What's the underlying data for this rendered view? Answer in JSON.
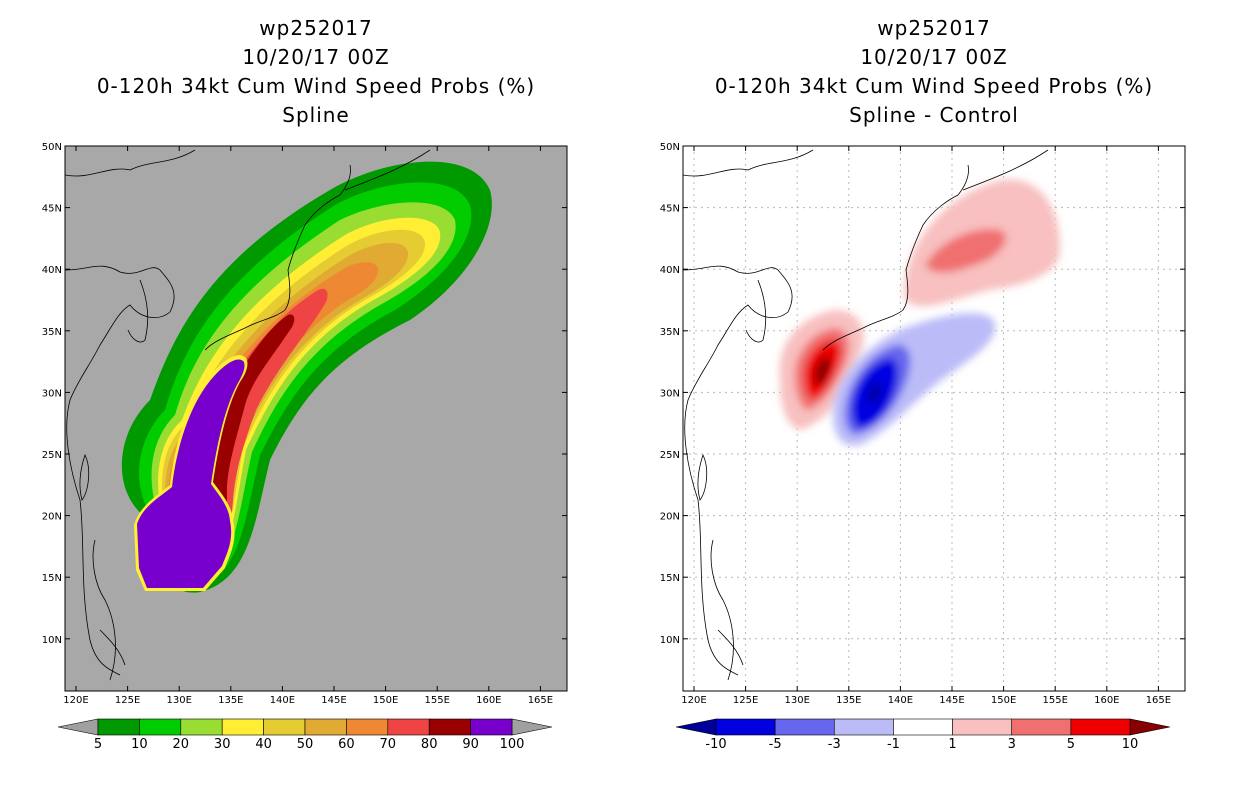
{
  "left_panel": {
    "title_line1": "wp252017",
    "title_line2": "10/20/17 00Z",
    "title_line3": "0-120h 34kt Cum Wind Speed Probs (%)",
    "title_line4": "Spline"
  },
  "right_panel": {
    "title_line1": "wp252017",
    "title_line2": "10/20/17 00Z",
    "title_line3": "0-120h 34kt Cum Wind Speed Probs (%)",
    "title_line4": "Spline - Control"
  },
  "map_axes": {
    "lon_labels": [
      "120E",
      "125E",
      "130E",
      "135E",
      "140E",
      "145E",
      "150E",
      "155E",
      "160E",
      "165E"
    ],
    "lat_labels": [
      "10N",
      "15N",
      "20N",
      "25N",
      "30N",
      "35N",
      "40N",
      "45N",
      "50N"
    ]
  },
  "left_colorbar": {
    "labels": [
      "5",
      "10",
      "20",
      "30",
      "40",
      "50",
      "60",
      "70",
      "80",
      "90",
      "100"
    ],
    "colors": [
      "#009900",
      "#00cc00",
      "#99dd33",
      "#ffee33",
      "#e6cc33",
      "#e0aa33",
      "#ee8833",
      "#ee4444",
      "#990000",
      "#7700cc"
    ],
    "under_color": "#a0a0a0",
    "over_color": "#a0a0a0"
  },
  "right_colorbar": {
    "labels": [
      "-10",
      "-5",
      "-3",
      "-1",
      "1",
      "3",
      "5",
      "10"
    ],
    "colors": [
      "#0000e0",
      "#6666ee",
      "#bbbbf8",
      "#ffffff",
      "#f8c0c0",
      "#f07070",
      "#ee0000"
    ],
    "under_color": "#000099",
    "over_color": "#880000"
  },
  "colors": {
    "map_background": "#a8a8a8",
    "grid": "#b8b8b8"
  }
}
